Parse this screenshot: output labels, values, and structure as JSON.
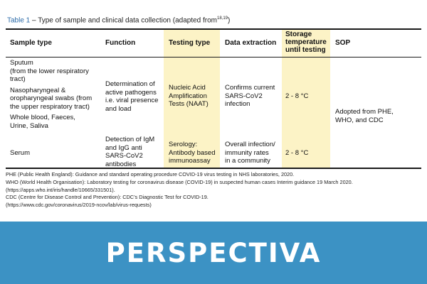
{
  "caption": {
    "table_label": "Table 1",
    "title": " – Type of sample and clinical data collection (adapted from",
    "refs": "18,19",
    "close": ")"
  },
  "headers": {
    "sample_type": "Sample type",
    "function": "Function",
    "testing_type": "Testing type",
    "data_extraction": "Data extraction",
    "storage_line1": "Storage",
    "storage_line2": "temperature",
    "storage_line3": "until testing",
    "sop": "SOP"
  },
  "rows": {
    "r1": {
      "sample_lines": [
        "Sputum",
        "(from the lower respiratory",
        "tract)",
        "Nasopharyngeal &",
        "oropharyngeal swabs (from",
        "the upper respiratory tract)",
        "Whole blood, Faeces,",
        "Urine, Saliva"
      ],
      "function_lines": [
        "Determination of",
        "active pathogens",
        "i.e. viral presence",
        "and load"
      ],
      "testing_lines": [
        "Nucleic Acid",
        "Amplification",
        "Tests (NAAT)"
      ],
      "extraction_lines": [
        "Confirms current",
        "SARS-CoV2",
        "infection"
      ],
      "storage": "2 - 8 °C"
    },
    "r2": {
      "sample_lines": [
        "Serum"
      ],
      "function_lines": [
        "Detection of IgM",
        "and IgG anti",
        "SARS-CoV2",
        "antibodies"
      ],
      "testing_lines": [
        "Serology:",
        "Antibody based",
        "immunoassay"
      ],
      "extraction_lines": [
        "Overall infection/",
        "immunity rates",
        "in a community"
      ],
      "storage": "2 - 8 °C"
    },
    "sop_lines": [
      "Adopted from PHE,",
      "WHO, and  CDC"
    ]
  },
  "notes": [
    "PHE (Public Health England): Guidance and standard operating procedure COVID-19 virus testing in NHS laboratories, 2020.",
    "WHO (World Health Organisation): Laboratory testing for coronavirus disease (COVID-19) in suspected human cases Interim guidance 19 March 2020.",
    "(https://apps.who.int/iris/handle/10665/331501).",
    "CDC (Centre for Disease Control and Prevention): CDC’s Diagnostic Test for COVID-19.",
    "(https://www.cdc.gov/coronavirus/2019-ncov/lab/virus-requests)"
  ],
  "banner": {
    "text": "PERSPECTIVA"
  },
  "colors": {
    "highlight": "#fcf3c6",
    "banner": "#3c92c4",
    "table_label": "#2a6aa8"
  }
}
